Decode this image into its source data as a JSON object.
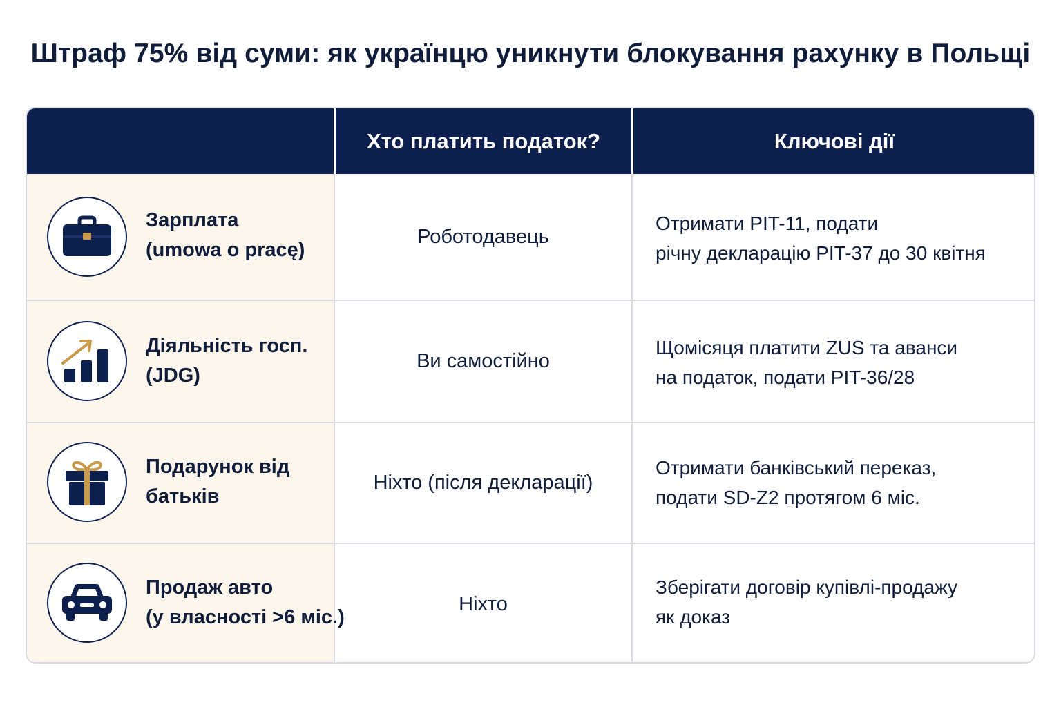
{
  "title": "Штраф 75% від суми: як українцю уникнути блокування рахунку в Польщі",
  "table": {
    "headers": [
      "",
      "Хто платить податок?",
      "Ключові дії"
    ],
    "rows": [
      {
        "icon": "briefcase-icon",
        "type_line1": "Зарплата",
        "type_line2": "(umowa o pracę)",
        "payer": "Роботодавець",
        "action_line1": "Отримати PIT-11, подати",
        "action_line2": "річну декларацію PIT-37 до 30 квітня"
      },
      {
        "icon": "growth-chart-icon",
        "type_line1": "Діяльність госп.",
        "type_line2": "(JDG)",
        "payer": "Ви самостійно",
        "action_line1": "Щомісяця платити ZUS та аванси",
        "action_line2": "на податок, подати PIT-36/28"
      },
      {
        "icon": "gift-icon",
        "type_line1": "Подарунок від",
        "type_line2": "батьків",
        "payer": "Ніхто (після декларації)",
        "action_line1": "Отримати банківський переказ,",
        "action_line2": "подати SD-Z2 протягом 6 міс."
      },
      {
        "icon": "car-icon",
        "type_line1": "Продаж авто",
        "type_line2": "(у власності >6 міс.)",
        "payer": "Ніхто",
        "action_line1": "Зберігати договір купівлі-продажу",
        "action_line2": "як доказ"
      }
    ]
  },
  "colors": {
    "header_bg": "#0d1f4c",
    "first_column_bg": "#fdf6ec",
    "icon_navy": "#0d1f4c",
    "icon_gold": "#c99a4a",
    "border": "#d8dce2"
  }
}
